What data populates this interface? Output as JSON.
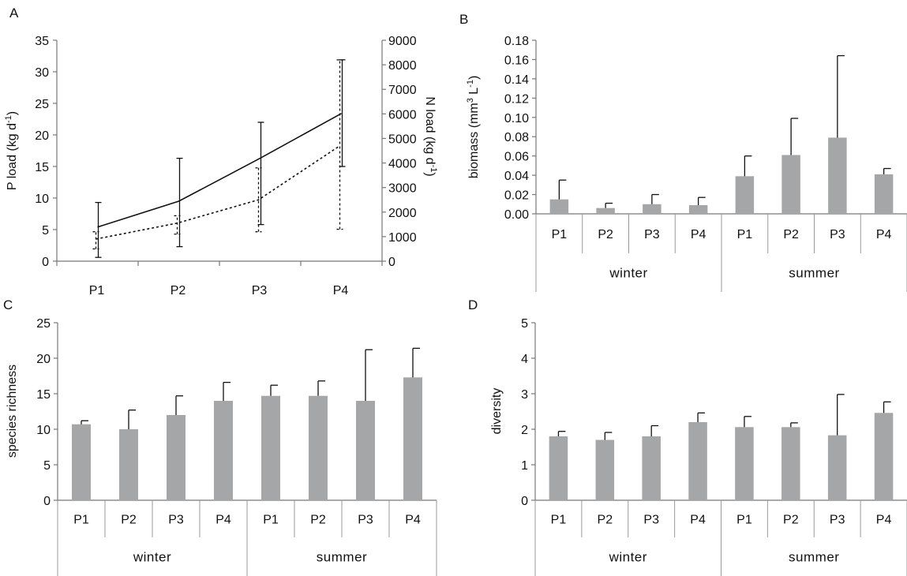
{
  "chart_data": [
    {
      "panel": "A",
      "type": "line",
      "categories": [
        "P1",
        "P2",
        "P3",
        "P4"
      ],
      "ylabel": "P load (kg d-1)",
      "y2label": "N load (kg d-1)",
      "ylim": [
        0,
        35
      ],
      "yticks": [
        "0",
        "5",
        "10",
        "15",
        "20",
        "25",
        "30",
        "35"
      ],
      "y2lim": [
        0,
        9000
      ],
      "y2ticks": [
        "0",
        "1000",
        "2000",
        "3000",
        "4000",
        "5000",
        "6000",
        "7000",
        "8000",
        "9000"
      ],
      "series": [
        {
          "style": "solid",
          "axis": "left",
          "values": [
            5.4,
            9.5,
            16.3,
            23.4
          ],
          "err_low": [
            0.6,
            2.3,
            5.8,
            15.0
          ],
          "err_high": [
            9.3,
            16.3,
            22.0,
            31.9
          ]
        },
        {
          "style": "dotted",
          "axis": "right",
          "values": [
            900,
            1550,
            2500,
            4700
          ],
          "err_low": [
            500,
            1100,
            1200,
            1300
          ],
          "err_high": [
            1200,
            1850,
            3800,
            8200
          ]
        }
      ]
    },
    {
      "panel": "B",
      "type": "bar",
      "categories": [
        "P1",
        "P2",
        "P3",
        "P4",
        "P1",
        "P2",
        "P3",
        "P4"
      ],
      "groups": [
        "winter",
        "summer"
      ],
      "ylabel": "biomass (mm3 L-1)",
      "ylim": [
        0,
        0.18
      ],
      "yticks": [
        "0.00",
        "0.02",
        "0.04",
        "0.06",
        "0.08",
        "0.10",
        "0.12",
        "0.14",
        "0.16",
        "0.18"
      ],
      "values": [
        0.015,
        0.006,
        0.01,
        0.009,
        0.039,
        0.061,
        0.079,
        0.041
      ],
      "errors": [
        0.035,
        0.011,
        0.02,
        0.017,
        0.06,
        0.099,
        0.164,
        0.047
      ]
    },
    {
      "panel": "C",
      "type": "bar",
      "categories": [
        "P1",
        "P2",
        "P3",
        "P4",
        "P1",
        "P2",
        "P3",
        "P4"
      ],
      "groups": [
        "winter",
        "summer"
      ],
      "ylabel": "species richness",
      "ylim": [
        0,
        25
      ],
      "yticks": [
        "0",
        "5",
        "10",
        "15",
        "20",
        "25"
      ],
      "values": [
        10.7,
        10.0,
        12.0,
        14.0,
        14.7,
        14.7,
        14.0,
        17.3
      ],
      "errors": [
        11.2,
        12.7,
        14.7,
        16.6,
        16.2,
        16.8,
        21.2,
        21.4
      ]
    },
    {
      "panel": "D",
      "type": "bar",
      "categories": [
        "P1",
        "P2",
        "P3",
        "P4",
        "P1",
        "P2",
        "P3",
        "P4"
      ],
      "groups": [
        "winter",
        "summer"
      ],
      "ylabel": "diversity",
      "ylim": [
        0,
        5
      ],
      "yticks": [
        "0",
        "1",
        "2",
        "3",
        "4",
        "5"
      ],
      "values": [
        1.8,
        1.7,
        1.8,
        2.2,
        2.06,
        2.06,
        1.83,
        2.46
      ],
      "errors": [
        1.94,
        1.91,
        2.1,
        2.46,
        2.36,
        2.18,
        2.98,
        2.77
      ]
    }
  ]
}
